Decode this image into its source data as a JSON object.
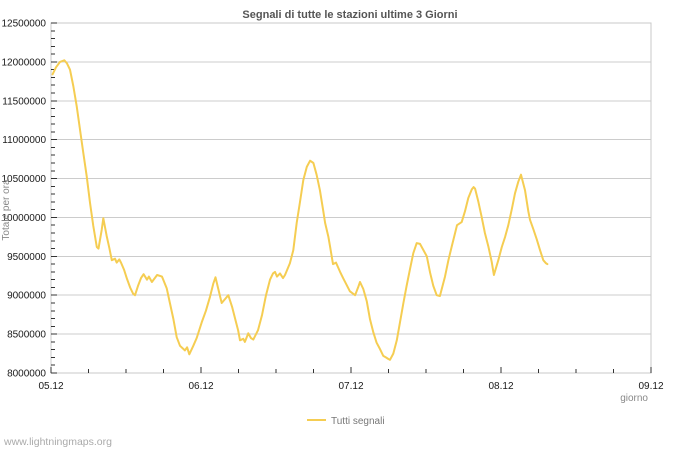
{
  "page": {
    "watermark": "www.lightningmaps.org"
  },
  "style": {
    "background": "#ffffff",
    "line_color": "#f5cd52",
    "grid_color": "#cccccc",
    "frame_color": "#c8c8c8",
    "tick_color": "#333333",
    "tick_label_color": "#1a1a1a",
    "title_color": "#555555",
    "axis_name_color": "#888888",
    "legend_text_color": "#777777",
    "watermark_color": "#aaaaaa"
  },
  "chart_data": {
    "type": "line",
    "title": "Segnali di tutte le stazioni ultime 3 Giorni",
    "xlabel": "giorno",
    "ylabel": "Totale per ora",
    "legend": {
      "label": "Tutti segnali",
      "position": "bottom-center"
    },
    "grid": "horizontal-major-only",
    "ylim": [
      8000000,
      12500000
    ],
    "xlim_days": [
      0,
      4
    ],
    "y_tick_step": 500000,
    "y_minor_tick_step": 100000,
    "x_minor_tick_step_days": 0.25,
    "y_ticks": [
      {
        "value": 8000000,
        "label": "8000000"
      },
      {
        "value": 8500000,
        "label": "8500000"
      },
      {
        "value": 9000000,
        "label": "9000000"
      },
      {
        "value": 9500000,
        "label": "9500000"
      },
      {
        "value": 10000000,
        "label": "10000000"
      },
      {
        "value": 10500000,
        "label": "10500000"
      },
      {
        "value": 11000000,
        "label": "11000000"
      },
      {
        "value": 11500000,
        "label": "11500000"
      },
      {
        "value": 12000000,
        "label": "12000000"
      },
      {
        "value": 12500000,
        "label": "12500000"
      }
    ],
    "x_ticks": [
      {
        "day": 0,
        "label": "05.12"
      },
      {
        "day": 1,
        "label": "06.12"
      },
      {
        "day": 2,
        "label": "07.12"
      },
      {
        "day": 3,
        "label": "08.12"
      },
      {
        "day": 4,
        "label": "09.12"
      }
    ],
    "series": [
      {
        "name": "Tutti segnali",
        "color": "#f5cd52",
        "points": [
          [
            0.011,
            11840000
          ],
          [
            0.033,
            11930000
          ],
          [
            0.06,
            12000000
          ],
          [
            0.089,
            12020000
          ],
          [
            0.107,
            11980000
          ],
          [
            0.127,
            11900000
          ],
          [
            0.149,
            11690000
          ],
          [
            0.171,
            11430000
          ],
          [
            0.193,
            11130000
          ],
          [
            0.215,
            10830000
          ],
          [
            0.238,
            10530000
          ],
          [
            0.26,
            10190000
          ],
          [
            0.282,
            9890000
          ],
          [
            0.305,
            9620000
          ],
          [
            0.317,
            9600000
          ],
          [
            0.338,
            9840000
          ],
          [
            0.349,
            9990000
          ],
          [
            0.371,
            9760000
          ],
          [
            0.389,
            9610000
          ],
          [
            0.405,
            9450000
          ],
          [
            0.427,
            9470000
          ],
          [
            0.438,
            9420000
          ],
          [
            0.455,
            9460000
          ],
          [
            0.467,
            9420000
          ],
          [
            0.487,
            9330000
          ],
          [
            0.507,
            9210000
          ],
          [
            0.527,
            9100000
          ],
          [
            0.547,
            9020000
          ],
          [
            0.56,
            9000000
          ],
          [
            0.58,
            9120000
          ],
          [
            0.6,
            9220000
          ],
          [
            0.617,
            9270000
          ],
          [
            0.64,
            9200000
          ],
          [
            0.653,
            9240000
          ],
          [
            0.673,
            9170000
          ],
          [
            0.707,
            9260000
          ],
          [
            0.74,
            9240000
          ],
          [
            0.771,
            9090000
          ],
          [
            0.793,
            8900000
          ],
          [
            0.815,
            8700000
          ],
          [
            0.838,
            8460000
          ],
          [
            0.86,
            8350000
          ],
          [
            0.893,
            8290000
          ],
          [
            0.907,
            8330000
          ],
          [
            0.922,
            8240000
          ],
          [
            0.949,
            8350000
          ],
          [
            0.971,
            8450000
          ],
          [
            1.005,
            8650000
          ],
          [
            1.033,
            8800000
          ],
          [
            1.06,
            8980000
          ],
          [
            1.082,
            9150000
          ],
          [
            1.097,
            9230000
          ],
          [
            1.113,
            9100000
          ],
          [
            1.138,
            8900000
          ],
          [
            1.16,
            8950000
          ],
          [
            1.182,
            9000000
          ],
          [
            1.207,
            8850000
          ],
          [
            1.227,
            8700000
          ],
          [
            1.247,
            8550000
          ],
          [
            1.26,
            8420000
          ],
          [
            1.282,
            8440000
          ],
          [
            1.293,
            8400000
          ],
          [
            1.315,
            8510000
          ],
          [
            1.333,
            8450000
          ],
          [
            1.349,
            8430000
          ],
          [
            1.38,
            8550000
          ],
          [
            1.407,
            8750000
          ],
          [
            1.433,
            9000000
          ],
          [
            1.46,
            9200000
          ],
          [
            1.48,
            9280000
          ],
          [
            1.493,
            9300000
          ],
          [
            1.507,
            9240000
          ],
          [
            1.527,
            9280000
          ],
          [
            1.547,
            9220000
          ],
          [
            1.56,
            9260000
          ],
          [
            1.593,
            9410000
          ],
          [
            1.615,
            9580000
          ],
          [
            1.638,
            9930000
          ],
          [
            1.66,
            10200000
          ],
          [
            1.682,
            10480000
          ],
          [
            1.705,
            10650000
          ],
          [
            1.727,
            10730000
          ],
          [
            1.749,
            10700000
          ],
          [
            1.771,
            10550000
          ],
          [
            1.793,
            10350000
          ],
          [
            1.815,
            10080000
          ],
          [
            1.827,
            9930000
          ],
          [
            1.849,
            9750000
          ],
          [
            1.86,
            9630000
          ],
          [
            1.88,
            9400000
          ],
          [
            1.9,
            9420000
          ],
          [
            1.927,
            9300000
          ],
          [
            1.947,
            9220000
          ],
          [
            1.971,
            9130000
          ],
          [
            1.993,
            9050000
          ],
          [
            2.027,
            9000000
          ],
          [
            2.047,
            9100000
          ],
          [
            2.06,
            9170000
          ],
          [
            2.082,
            9080000
          ],
          [
            2.105,
            8920000
          ],
          [
            2.127,
            8690000
          ],
          [
            2.149,
            8520000
          ],
          [
            2.171,
            8390000
          ],
          [
            2.193,
            8310000
          ],
          [
            2.215,
            8220000
          ],
          [
            2.233,
            8200000
          ],
          [
            2.249,
            8180000
          ],
          [
            2.26,
            8170000
          ],
          [
            2.282,
            8250000
          ],
          [
            2.305,
            8420000
          ],
          [
            2.327,
            8660000
          ],
          [
            2.349,
            8900000
          ],
          [
            2.371,
            9120000
          ],
          [
            2.393,
            9330000
          ],
          [
            2.415,
            9540000
          ],
          [
            2.438,
            9670000
          ],
          [
            2.46,
            9660000
          ],
          [
            2.505,
            9500000
          ],
          [
            2.527,
            9290000
          ],
          [
            2.549,
            9120000
          ],
          [
            2.571,
            9000000
          ],
          [
            2.593,
            8990000
          ],
          [
            2.627,
            9240000
          ],
          [
            2.649,
            9450000
          ],
          [
            2.671,
            9620000
          ],
          [
            2.693,
            9790000
          ],
          [
            2.707,
            9900000
          ],
          [
            2.738,
            9940000
          ],
          [
            2.76,
            10080000
          ],
          [
            2.782,
            10250000
          ],
          [
            2.805,
            10360000
          ],
          [
            2.817,
            10390000
          ],
          [
            2.827,
            10370000
          ],
          [
            2.849,
            10200000
          ],
          [
            2.871,
            10010000
          ],
          [
            2.893,
            9800000
          ],
          [
            2.915,
            9630000
          ],
          [
            2.938,
            9430000
          ],
          [
            2.953,
            9260000
          ],
          [
            2.982,
            9450000
          ],
          [
            3.005,
            9620000
          ],
          [
            3.027,
            9750000
          ],
          [
            3.049,
            9900000
          ],
          [
            3.071,
            10100000
          ],
          [
            3.093,
            10310000
          ],
          [
            3.115,
            10460000
          ],
          [
            3.133,
            10550000
          ],
          [
            3.16,
            10350000
          ],
          [
            3.182,
            10080000
          ],
          [
            3.193,
            9970000
          ],
          [
            3.215,
            9850000
          ],
          [
            3.238,
            9720000
          ],
          [
            3.26,
            9580000
          ],
          [
            3.282,
            9450000
          ],
          [
            3.3,
            9410000
          ],
          [
            3.309,
            9400000
          ]
        ]
      }
    ]
  }
}
